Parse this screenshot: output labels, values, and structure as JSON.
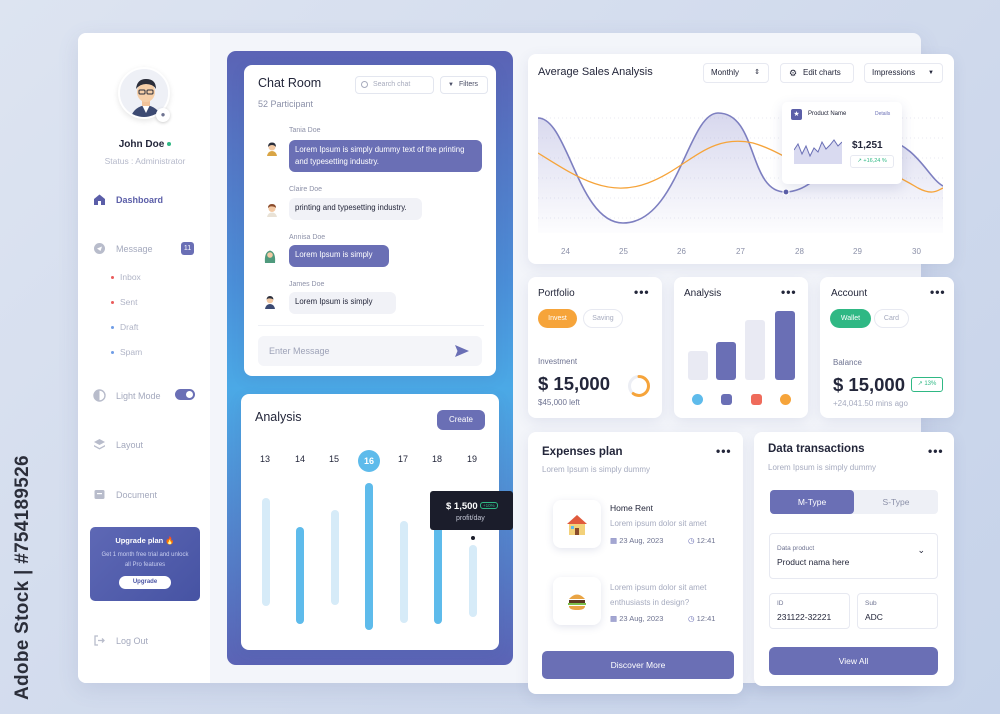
{
  "watermark": {
    "side_text": "Adobe Stock | #754189526"
  },
  "sidebar": {
    "user_name": "John Doe",
    "status": "Status : Administrator",
    "nav": {
      "dashboard": "Dashboard",
      "message": "Message",
      "message_badge": "11",
      "inbox": "Inbox",
      "sent": "Sent",
      "draft": "Draft",
      "spam": "Spam",
      "light_mode": "Light Mode",
      "layout": "Layout",
      "document": "Document",
      "logout": "Log Out"
    },
    "upgrade": {
      "title": "Upgrade plan 🔥",
      "desc": "Get 1 month free trial and unlock all Pro features",
      "button": "Upgrade"
    }
  },
  "chat": {
    "title": "Chat Room",
    "participants": "52 Participant",
    "search_placeholder": "Search chat",
    "filters": "Filters",
    "messages": [
      {
        "name": "Tania Doe",
        "text": "Lorem Ipsum is simply dummy text of the printing and typesetting industry."
      },
      {
        "name": "Claire Doe",
        "text": "printing and typesetting industry."
      },
      {
        "name": "Annisa Doe",
        "text": "Lorem Ipsum is simply"
      },
      {
        "name": "James Doe",
        "text": "Lorem Ipsum is simply"
      }
    ],
    "input_placeholder": "Enter Message"
  },
  "analysis_left": {
    "title": "Analysis",
    "create": "Create",
    "days": [
      "13",
      "14",
      "15",
      "16",
      "17",
      "18",
      "19"
    ],
    "selected_day": "16",
    "tooltip_value": "$ 1,500",
    "tooltip_badge": "+10%",
    "tooltip_sub": "profit/day"
  },
  "sales": {
    "title": "Average Sales Analysis",
    "period": "Monthly",
    "edit_charts": "Edit charts",
    "metric": "Impressions",
    "x_labels": [
      "24",
      "25",
      "26",
      "27",
      "28",
      "29",
      "30"
    ],
    "tooltip": {
      "product": "Product Name",
      "details": "Details",
      "price": "$1,251",
      "change": "+16,24 %"
    }
  },
  "portfolio": {
    "title": "Portfolio",
    "tab_active": "Invest",
    "tab_other": "Saving",
    "label": "Investment",
    "value": "$ 15,000",
    "left": "$45,000 left",
    "ring_fraction": 0.6
  },
  "analysis_right": {
    "title": "Analysis"
  },
  "account": {
    "title": "Account",
    "tab_active": "Wallet",
    "tab_other": "Card",
    "label": "Balance",
    "value": "$ 15,000",
    "change": "↗ 13%",
    "sub": "+24,041.50 mins ago"
  },
  "expenses": {
    "title": "Expenses plan",
    "subtitle": "Lorem Ipsum is simply dummy",
    "items": [
      {
        "title": "Home Rent",
        "desc": "Lorem ipsum dolor sit amet",
        "date": "23 Aug, 2023",
        "time": "12:41"
      },
      {
        "title": "Lorem ipsum dolor sit amet enthusiasts in design?",
        "date": "23 Aug, 2023",
        "time": "12:41"
      }
    ],
    "button": "Discover More"
  },
  "transactions": {
    "title": "Data transactions",
    "subtitle": "Lorem Ipsum is simply dummy",
    "tab_active": "M-Type",
    "tab_other": "S-Type",
    "product_label": "Data product",
    "product_value": "Product nama here",
    "id_label": "ID",
    "id_value": "231122-32221",
    "sub_label": "Sub",
    "sub_value": "ADC",
    "button": "View All"
  },
  "colors": {
    "accent": "#6a6fb5",
    "orange": "#f6a43a",
    "sky": "#5ebbeb",
    "green": "#2fb884"
  }
}
